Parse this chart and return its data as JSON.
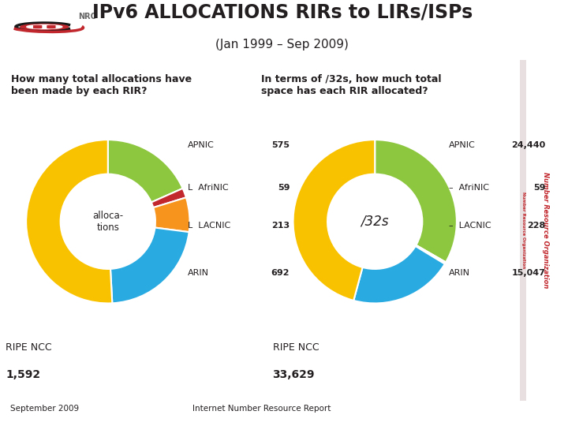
{
  "title": "IPv6 ALLOCATIONS RIRs to LIRs/ISPs",
  "subtitle": "(Jan 1999 – Sep 2009)",
  "q1": "How many total allocations have\nbeen made by each RIR?",
  "q2": "In terms of /32s, how much total\nspace has each RIR allocated?",
  "footer_left": "September 2009",
  "footer_center": "Internet Number Resource Report",
  "chart1_center_label": "alloca-\ntions",
  "chart2_center_label": "/32s",
  "chart1_labels": [
    "APNIC",
    "AfriNIC",
    "LACNIC",
    "ARIN",
    "RIPE NCC"
  ],
  "chart1_values": [
    575,
    59,
    213,
    692,
    1592
  ],
  "chart1_display": [
    "575",
    "59",
    "213",
    "692",
    "1,592"
  ],
  "chart2_labels": [
    "APNIC",
    "AfriNIC",
    "LACNIC",
    "ARIN",
    "RIPE NCC"
  ],
  "chart2_values": [
    24440,
    59,
    228,
    15047,
    33629
  ],
  "chart2_display": [
    "24,440",
    "59",
    "228",
    "15,047",
    "33,629"
  ],
  "colors": {
    "APNIC": "#8dc63f",
    "AfriNIC": "#c1272d",
    "LACNIC": "#f7941d",
    "ARIN": "#29abe2",
    "RIPE NCC": "#f9c200"
  },
  "bg_color": "#ffffff",
  "text_color": "#231f20",
  "label_color": "#444444"
}
